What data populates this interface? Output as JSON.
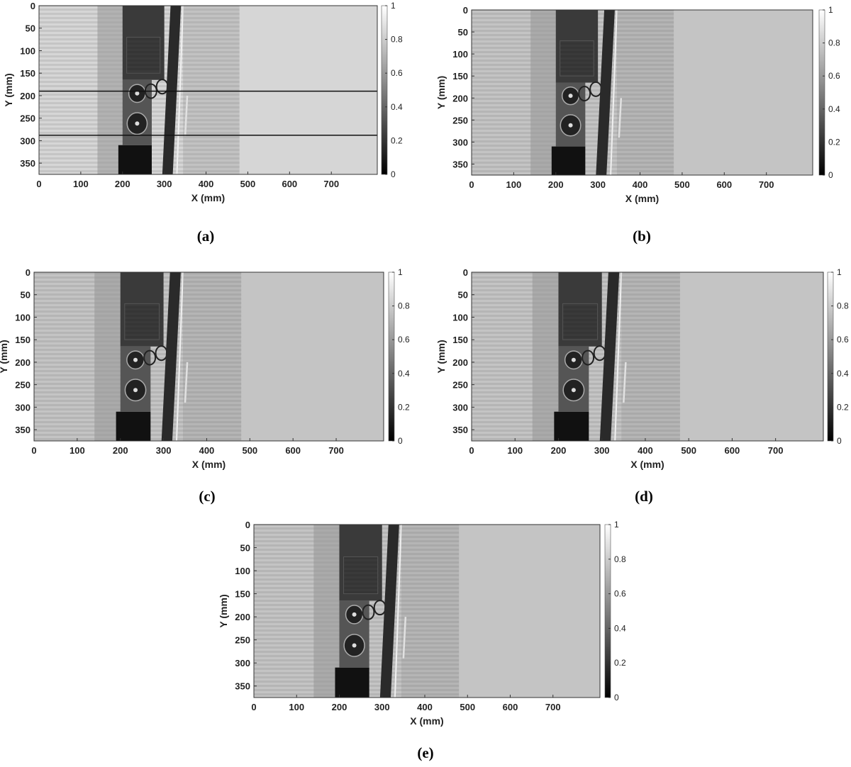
{
  "chart_data": [
    {
      "type": "image",
      "caption": "(a)",
      "xlabel": "X (mm)",
      "ylabel": "Y (mm)",
      "xlim": [
        0,
        810
      ],
      "ylim": [
        0,
        375
      ],
      "y_reversed": true,
      "xticks": [
        0,
        100,
        200,
        300,
        400,
        500,
        600,
        700
      ],
      "yticks": [
        0,
        50,
        100,
        150,
        200,
        250,
        300,
        350
      ],
      "colorbar": {
        "ylim": [
          0,
          1
        ],
        "yticks": [
          0,
          0.2,
          0.4,
          0.6,
          0.8,
          1
        ]
      }
    },
    {
      "type": "image",
      "caption": "(b)",
      "xlabel": "X (mm)",
      "ylabel": "Y (mm)",
      "xlim": [
        0,
        810
      ],
      "ylim": [
        0,
        375
      ],
      "y_reversed": true,
      "xticks": [
        0,
        100,
        200,
        300,
        400,
        500,
        600,
        700
      ],
      "yticks": [
        0,
        50,
        100,
        150,
        200,
        250,
        300,
        350
      ],
      "colorbar": {
        "ylim": [
          0,
          1
        ],
        "yticks": [
          0,
          0.2,
          0.4,
          0.6,
          0.8,
          1
        ]
      }
    },
    {
      "type": "image",
      "caption": "(c)",
      "xlabel": "X (mm)",
      "ylabel": "Y (mm)",
      "xlim": [
        0,
        810
      ],
      "ylim": [
        0,
        375
      ],
      "y_reversed": true,
      "xticks": [
        0,
        100,
        200,
        300,
        400,
        500,
        600,
        700
      ],
      "yticks": [
        0,
        50,
        100,
        150,
        200,
        250,
        300,
        350
      ],
      "colorbar": {
        "ylim": [
          0,
          1
        ],
        "yticks": [
          0,
          0.2,
          0.4,
          0.6,
          0.8,
          1
        ]
      }
    },
    {
      "type": "image",
      "caption": "(d)",
      "xlabel": "X (mm)",
      "ylabel": "Y (mm)",
      "xlim": [
        0,
        810
      ],
      "ylim": [
        0,
        375
      ],
      "y_reversed": true,
      "xticks": [
        0,
        100,
        200,
        300,
        400,
        500,
        600,
        700
      ],
      "yticks": [
        0,
        50,
        100,
        150,
        200,
        250,
        300,
        350
      ],
      "colorbar": {
        "ylim": [
          0,
          1
        ],
        "yticks": [
          0,
          0.2,
          0.4,
          0.6,
          0.8,
          1
        ]
      }
    },
    {
      "type": "image",
      "caption": "(e)",
      "xlabel": "X (mm)",
      "ylabel": "Y (mm)",
      "xlim": [
        0,
        810
      ],
      "ylim": [
        0,
        375
      ],
      "y_reversed": true,
      "xticks": [
        0,
        100,
        200,
        300,
        400,
        500,
        600,
        700
      ],
      "yticks": [
        0,
        50,
        100,
        150,
        200,
        250,
        300,
        350
      ],
      "colorbar": {
        "ylim": [
          0,
          1
        ],
        "yticks": [
          0,
          0.2,
          0.4,
          0.6,
          0.8,
          1
        ]
      }
    }
  ]
}
